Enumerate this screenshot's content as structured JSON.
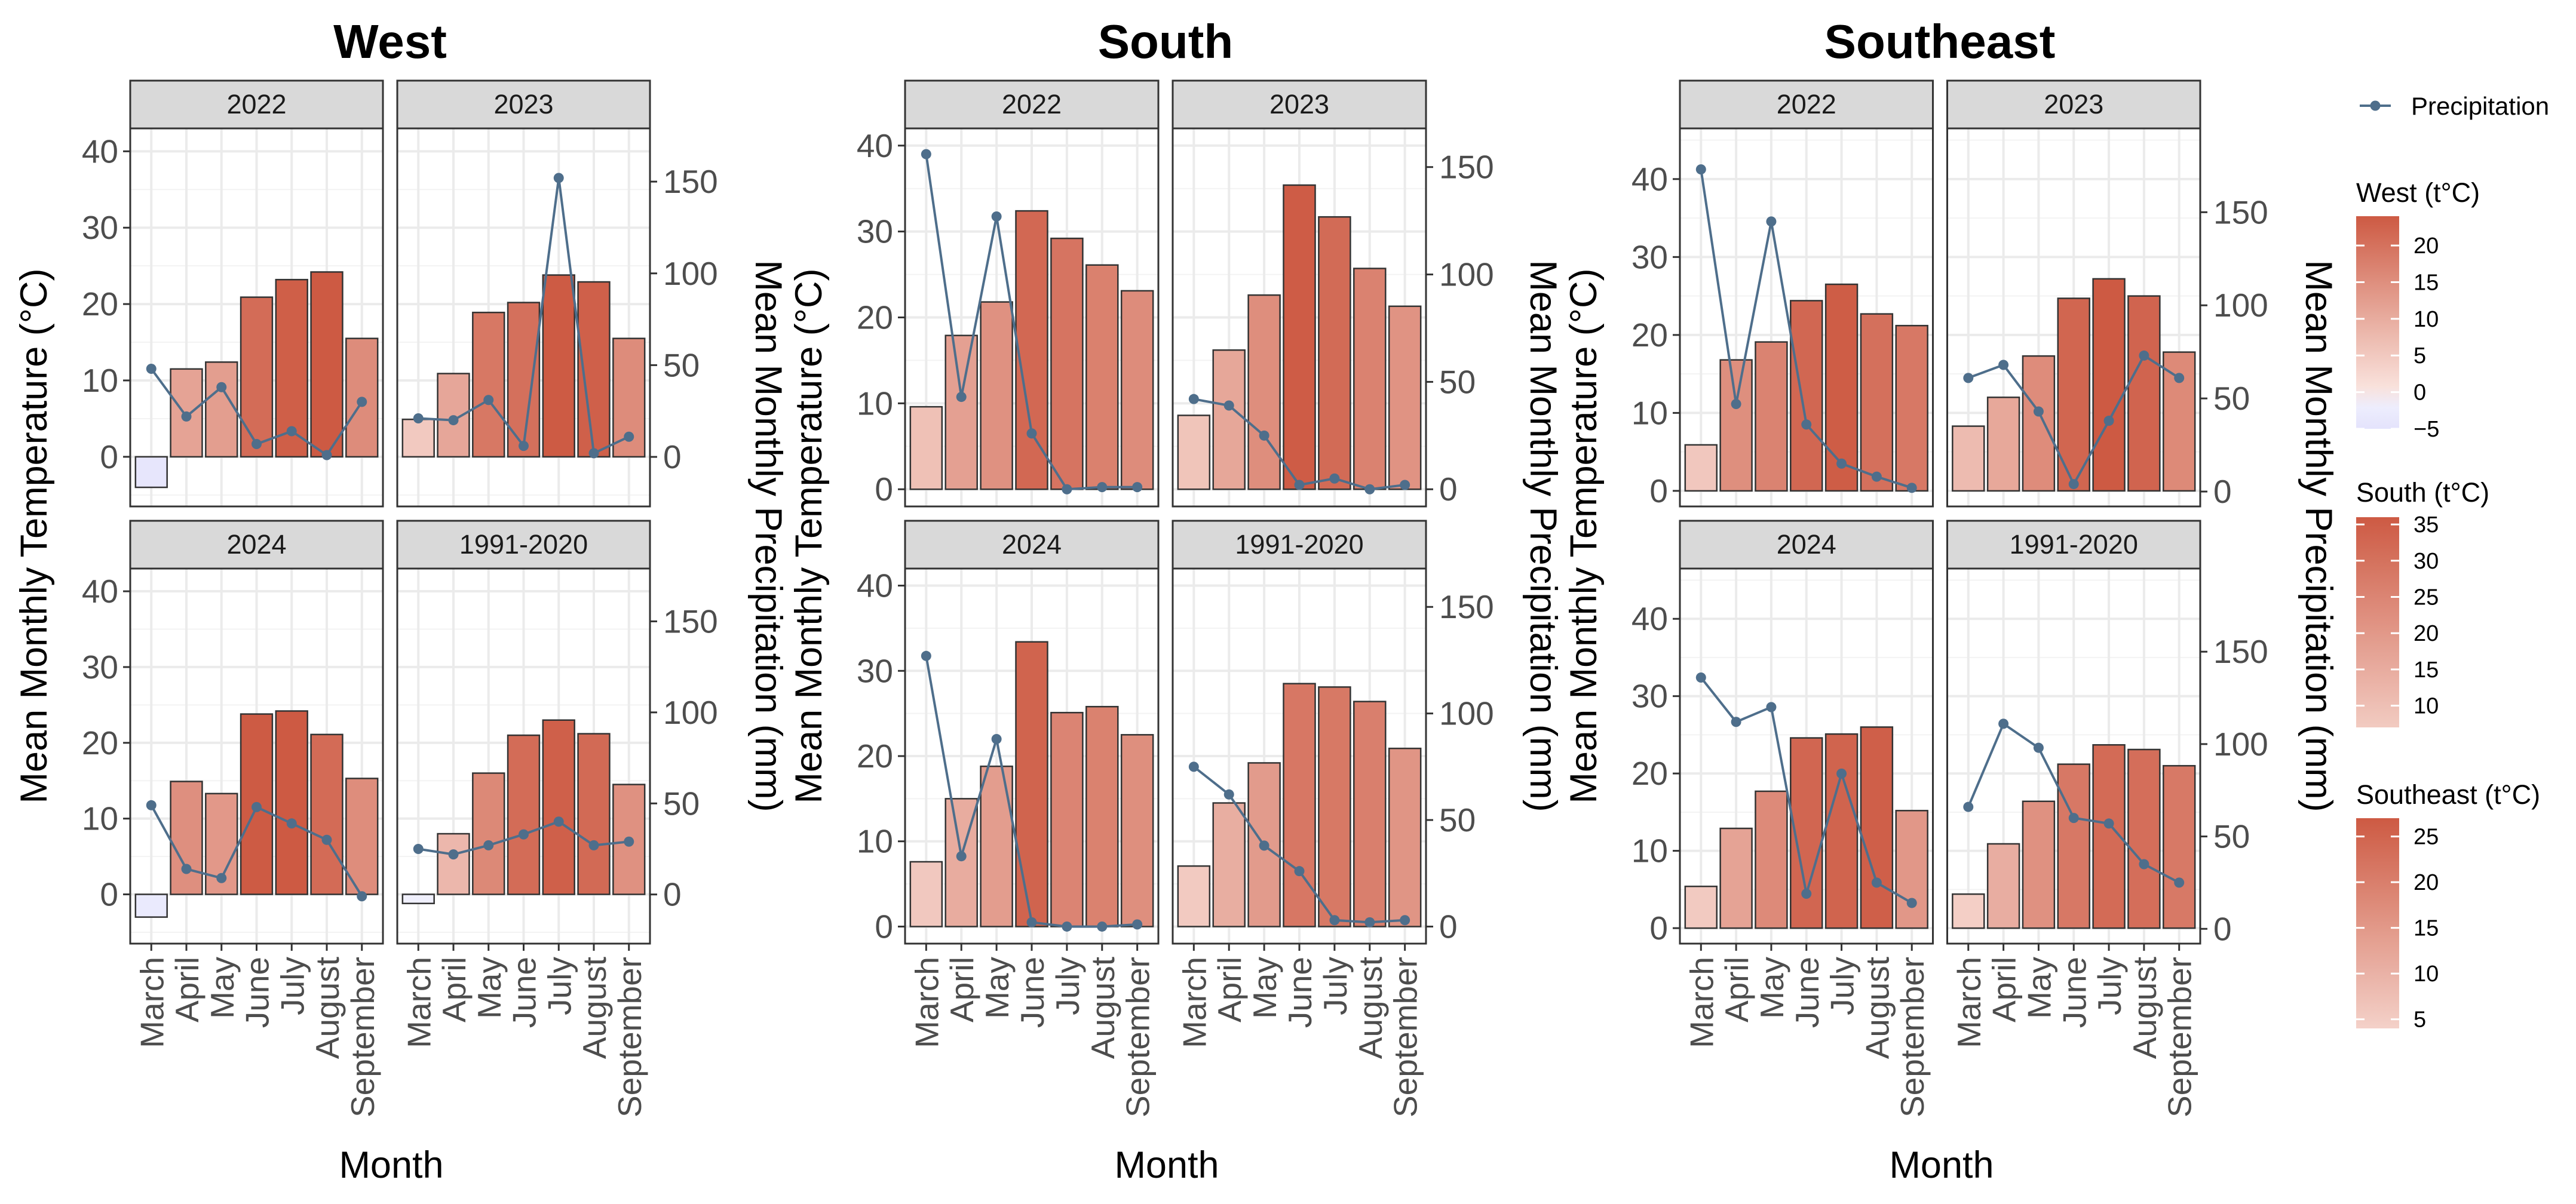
{
  "chart_data": [
    {
      "type": "bar",
      "title": "West",
      "xlabel": "Month",
      "ylabel": "Mean Monthly Temperature   (°C)",
      "y2label": "Mean Monthly Precipitation (mm)",
      "categories": [
        "March",
        "April",
        "May",
        "June",
        "July",
        "August",
        "September"
      ],
      "ylim": [
        -6.5,
        43
      ],
      "y2lim": [
        -27,
        179
      ],
      "yticks": [
        0,
        10,
        20,
        30,
        40
      ],
      "y2ticks": [
        0,
        50,
        100,
        150
      ],
      "fill_scale": {
        "min": -5,
        "max": 24
      },
      "panels": [
        {
          "label": "2022",
          "temperature": [
            -4.0,
            11.5,
            12.4,
            20.9,
            23.2,
            24.2,
            15.5
          ],
          "precipitation": [
            48,
            22,
            38,
            7,
            14,
            1,
            30
          ]
        },
        {
          "label": "2023",
          "temperature": [
            4.9,
            10.9,
            18.9,
            20.2,
            23.8,
            22.9,
            15.5
          ],
          "precipitation": [
            21,
            20,
            31,
            6,
            152,
            2,
            11
          ]
        },
        {
          "label": "2024",
          "temperature": [
            -3.0,
            14.9,
            13.3,
            23.8,
            24.2,
            21.1,
            15.3
          ],
          "precipitation": [
            49,
            14,
            9,
            48,
            39,
            30,
            -1
          ]
        },
        {
          "label": "1991-2020",
          "temperature": [
            -1.2,
            8.0,
            16.0,
            21.0,
            23.0,
            21.2,
            14.5
          ],
          "precipitation": [
            25,
            22,
            27,
            33,
            40,
            27,
            29
          ]
        }
      ]
    },
    {
      "type": "bar",
      "title": "South",
      "xlabel": "Month",
      "ylabel": "Mean Monthly Temperature   (°C)",
      "y2label": "Mean Monthly Precipitation (mm)",
      "categories": [
        "March",
        "April",
        "May",
        "June",
        "July",
        "August",
        "September"
      ],
      "ylim": [
        -2,
        42
      ],
      "y2lim": [
        -8,
        168
      ],
      "yticks": [
        0,
        10,
        20,
        30,
        40
      ],
      "y2ticks": [
        0,
        50,
        100,
        150
      ],
      "fill_scale": {
        "min": 7,
        "max": 36
      },
      "panels": [
        {
          "label": "2022",
          "temperature": [
            9.6,
            17.9,
            21.8,
            32.4,
            29.2,
            26.1,
            23.1
          ],
          "precipitation": [
            156,
            43,
            127,
            26,
            0,
            1,
            1
          ]
        },
        {
          "label": "2023",
          "temperature": [
            8.6,
            16.2,
            22.6,
            35.4,
            31.7,
            25.7,
            21.3
          ],
          "precipitation": [
            42,
            39,
            25,
            2,
            5,
            0,
            2
          ]
        },
        {
          "label": "2024",
          "temperature": [
            7.6,
            15.0,
            18.8,
            33.4,
            25.1,
            25.8,
            22.5
          ],
          "precipitation": [
            127,
            33,
            88,
            2,
            0,
            0,
            1
          ]
        },
        {
          "label": "1991-2020",
          "temperature": [
            7.1,
            14.5,
            19.2,
            28.5,
            28.1,
            26.4,
            20.9
          ],
          "precipitation": [
            75,
            62,
            38,
            26,
            3,
            2,
            3
          ]
        }
      ]
    },
    {
      "type": "bar",
      "title": "Southeast",
      "xlabel": "Month",
      "ylabel": "Mean Monthly Temperature   (°C)",
      "y2label": "Mean Monthly Precipitation (mm)",
      "categories": [
        "March",
        "April",
        "May",
        "June",
        "July",
        "August",
        "September"
      ],
      "ylim": [
        -2,
        46.5
      ],
      "y2lim": [
        -8,
        195
      ],
      "yticks": [
        0,
        10,
        20,
        30,
        40
      ],
      "y2ticks": [
        0,
        50,
        100,
        150
      ],
      "fill_scale": {
        "min": 4,
        "max": 27
      },
      "panels": [
        {
          "label": "2022",
          "temperature": [
            5.9,
            16.8,
            19.1,
            24.4,
            26.5,
            22.7,
            21.2
          ],
          "precipitation": [
            173,
            47,
            145,
            36,
            15,
            8,
            2
          ]
        },
        {
          "label": "2023",
          "temperature": [
            8.3,
            12.0,
            17.3,
            24.7,
            27.2,
            25.0,
            17.8
          ],
          "precipitation": [
            61,
            68,
            43,
            4,
            38,
            73,
            61
          ]
        },
        {
          "label": "2024",
          "temperature": [
            5.4,
            12.9,
            17.7,
            24.6,
            25.1,
            26.0,
            15.2
          ],
          "precipitation": [
            136,
            112,
            120,
            19,
            84,
            25,
            14
          ]
        },
        {
          "label": "1991-2020",
          "temperature": [
            4.4,
            10.9,
            16.4,
            21.2,
            23.7,
            23.1,
            21.0
          ],
          "precipitation": [
            66,
            111,
            98,
            60,
            57,
            35,
            25
          ]
        }
      ]
    }
  ],
  "legend": {
    "line_label": "Precipitation",
    "line_color": "#4e6e8b",
    "scales": [
      {
        "title": "West (t°C)",
        "ticks": [
          20,
          15,
          10,
          5,
          0,
          -5
        ],
        "min": -5,
        "max": 24
      },
      {
        "title": "South (t°C)",
        "ticks": [
          35,
          30,
          25,
          20,
          15,
          10
        ],
        "min": 7,
        "max": 36
      },
      {
        "title": "Southeast (t°C)",
        "ticks": [
          25,
          20,
          15,
          10,
          5
        ],
        "min": 4,
        "max": 27
      }
    ]
  },
  "colors": {
    "high": "#cd5a43",
    "low": "#fbe6e0",
    "negative": "#e4e3fc",
    "strip": "#d9d9d9",
    "grid": "#ebebeb",
    "panel_border": "#333333"
  }
}
